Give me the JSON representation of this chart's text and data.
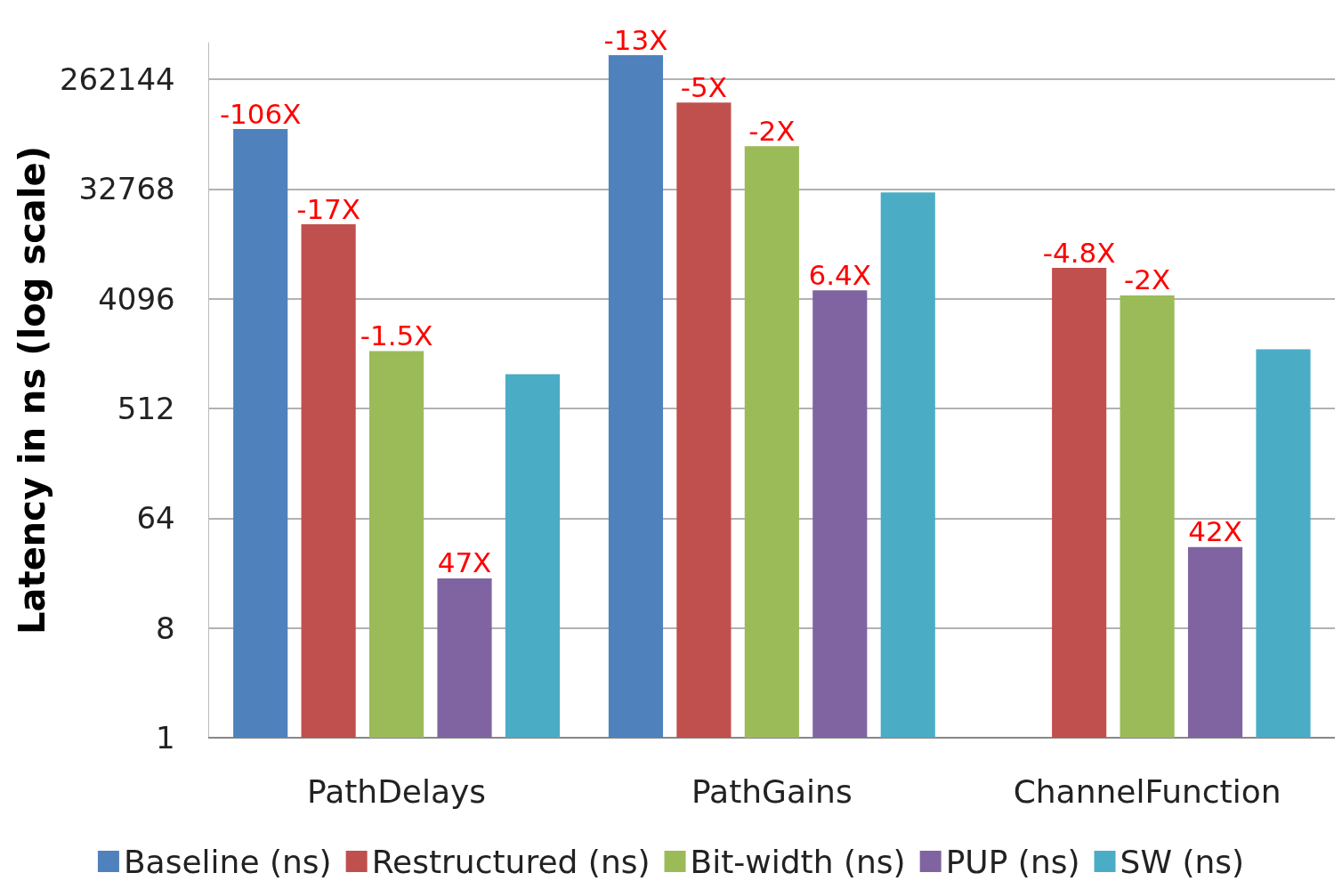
{
  "chart_data": {
    "type": "bar",
    "ylabel": "Latency in ns (log scale)",
    "categories": [
      "PathDelays",
      "PathGains",
      "ChannelFunction"
    ],
    "series": [
      {
        "name": "Baseline (ns)",
        "color": "#4f81bd",
        "values": [
          102000,
          414000,
          null
        ]
      },
      {
        "name": "Restructured (ns)",
        "color": "#c0504d",
        "values": [
          16800,
          169000,
          7350
        ]
      },
      {
        "name": "Bit-width (ns)",
        "color": "#9bbb59",
        "values": [
          1520,
          73900,
          4370
        ]
      },
      {
        "name": "PUP (ns)",
        "color": "#8064a2",
        "values": [
          20.5,
          4810,
          37
        ]
      },
      {
        "name": "SW (ns)",
        "color": "#4bacc6",
        "values": [
          980,
          30700,
          1570
        ]
      }
    ],
    "annotations": [
      "-106X",
      "-17X",
      "-1.5X",
      "47X",
      "-13X",
      "-5X",
      "-2X",
      "6.4X",
      "-4.8X",
      "-2X",
      "42X"
    ],
    "log": "y",
    "ylim": [
      1,
      524288
    ],
    "yticks": [
      1,
      8,
      64,
      512,
      4096,
      32768,
      262144
    ],
    "grid": "y",
    "legend": "bottom"
  }
}
